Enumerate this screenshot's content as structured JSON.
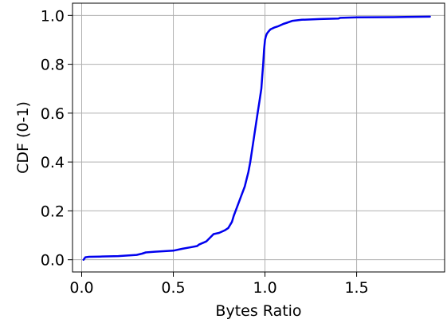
{
  "chart_data": {
    "type": "line",
    "title": "",
    "xlabel": "Bytes Ratio",
    "ylabel": "CDF (0-1)",
    "xlim": [
      -0.05,
      1.98
    ],
    "ylim": [
      -0.05,
      1.05
    ],
    "xticks": [
      0.0,
      0.5,
      1.0,
      1.5
    ],
    "xtick_labels": [
      "0.0",
      "0.5",
      "1.0",
      "1.5"
    ],
    "yticks": [
      0.0,
      0.2,
      0.4,
      0.6,
      0.8,
      1.0
    ],
    "ytick_labels": [
      "0.0",
      "0.2",
      "0.4",
      "0.6",
      "0.8",
      "1.0"
    ],
    "grid": true,
    "legend": "none",
    "series": [
      {
        "color": "#0000ee",
        "x": [
          0.01,
          0.02,
          0.04,
          0.1,
          0.2,
          0.3,
          0.33,
          0.35,
          0.4,
          0.5,
          0.55,
          0.6,
          0.63,
          0.64,
          0.68,
          0.7,
          0.72,
          0.75,
          0.78,
          0.8,
          0.82,
          0.83,
          0.84,
          0.85,
          0.86,
          0.87,
          0.88,
          0.89,
          0.9,
          0.91,
          0.92,
          0.93,
          0.94,
          0.95,
          0.96,
          0.97,
          0.98,
          0.985,
          0.99,
          0.995,
          1.0,
          1.005,
          1.01,
          1.02,
          1.03,
          1.05,
          1.07,
          1.1,
          1.12,
          1.15,
          1.2,
          1.3,
          1.4,
          1.41,
          1.5,
          1.7,
          1.9
        ],
        "y": [
          0.0,
          0.01,
          0.012,
          0.013,
          0.015,
          0.02,
          0.025,
          0.03,
          0.033,
          0.037,
          0.045,
          0.052,
          0.056,
          0.062,
          0.075,
          0.09,
          0.105,
          0.11,
          0.12,
          0.13,
          0.155,
          0.18,
          0.2,
          0.22,
          0.24,
          0.26,
          0.28,
          0.3,
          0.33,
          0.36,
          0.4,
          0.45,
          0.5,
          0.55,
          0.6,
          0.65,
          0.7,
          0.75,
          0.8,
          0.86,
          0.9,
          0.915,
          0.925,
          0.935,
          0.943,
          0.95,
          0.955,
          0.965,
          0.97,
          0.978,
          0.982,
          0.985,
          0.987,
          0.99,
          0.992,
          0.993,
          0.995
        ]
      }
    ]
  }
}
